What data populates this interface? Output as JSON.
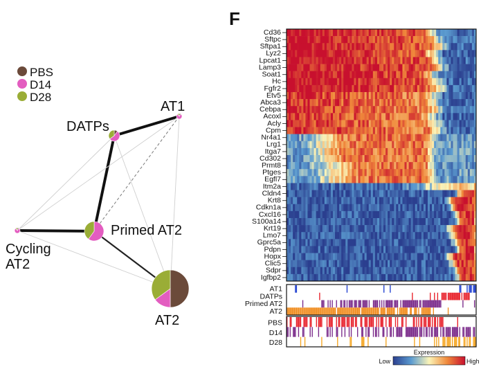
{
  "panel_label": "F",
  "legend": {
    "items": [
      {
        "label": "PBS",
        "color": "#6b4a3a"
      },
      {
        "label": "D14",
        "color": "#e35dc0"
      },
      {
        "label": "D28",
        "color": "#9aad36"
      }
    ]
  },
  "network": {
    "nodes": [
      {
        "id": "at1",
        "label": "AT1",
        "label_lines": [
          "AT1"
        ],
        "shares": [
          0.1,
          0.8,
          0.1
        ]
      },
      {
        "id": "datps",
        "label": "DATPs",
        "label_lines": [
          "DATPs"
        ],
        "shares": [
          0.1,
          0.55,
          0.35
        ]
      },
      {
        "id": "primed",
        "label": "Primed AT2",
        "label_lines": [
          "Primed AT2"
        ],
        "shares": [
          0.0,
          0.6,
          0.4
        ]
      },
      {
        "id": "cycling",
        "label": "Cycling AT2",
        "label_lines": [
          "Cycling",
          "AT2"
        ],
        "shares": [
          0.1,
          0.8,
          0.1
        ]
      },
      {
        "id": "at2",
        "label": "AT2",
        "label_lines": [
          "AT2"
        ],
        "shares": [
          0.5,
          0.15,
          0.35
        ]
      }
    ],
    "edges": [
      {
        "from": "datps",
        "to": "at1",
        "style": "thick"
      },
      {
        "from": "datps",
        "to": "primed",
        "style": "thick"
      },
      {
        "from": "primed",
        "to": "cycling",
        "style": "thick"
      },
      {
        "from": "primed",
        "to": "at2",
        "style": "medium"
      },
      {
        "from": "primed",
        "to": "at1",
        "style": "dashed"
      },
      {
        "from": "cycling",
        "to": "datps",
        "style": "thin"
      },
      {
        "from": "cycling",
        "to": "at1",
        "style": "thin"
      },
      {
        "from": "cycling",
        "to": "at2",
        "style": "thin"
      },
      {
        "from": "datps",
        "to": "at2",
        "style": "thin"
      },
      {
        "from": "at1",
        "to": "at2",
        "style": "thin"
      }
    ]
  },
  "heatmap": {
    "genes": [
      "Cd36",
      "Sftpc",
      "Sftpa1",
      "Lyz2",
      "Lpcat1",
      "Lamp3",
      "Soat1",
      "Hc",
      "Fgfr2",
      "Etv5",
      "Abca3",
      "Cebpa",
      "Acoxl",
      "Acly",
      "Cpm",
      "Nr4a1",
      "Lrg1",
      "Itga7",
      "Cd302",
      "Prmt8",
      "Ptges",
      "Egfl7",
      "Itm2a",
      "Cldn4",
      "Krt8",
      "Cdkn1a",
      "Cxcl16",
      "S100a14",
      "Krt19",
      "Lmo7",
      "Gprc5a",
      "Pdpn",
      "Hopx",
      "Clic5",
      "Sdpr",
      "Igfbp2"
    ],
    "colorbar": {
      "title": "Expression",
      "low_label": "Low",
      "high_label": "High",
      "colors": [
        "#2b3f8f",
        "#5b9bd0",
        "#fbf4b8",
        "#f08a3c",
        "#c8102e"
      ]
    }
  },
  "cluster_annotation": {
    "labels": [
      "AT1",
      "DATPs",
      "Primed AT2",
      "AT2"
    ],
    "colors": [
      "#1f3fd1",
      "#e8202a",
      "#7a2a8a",
      "#f08c1e"
    ]
  },
  "condition_annotation": {
    "labels": [
      "PBS",
      "D14",
      "D28"
    ],
    "colors": [
      "#e8202a",
      "#7a2a8a",
      "#f5a623"
    ]
  }
}
